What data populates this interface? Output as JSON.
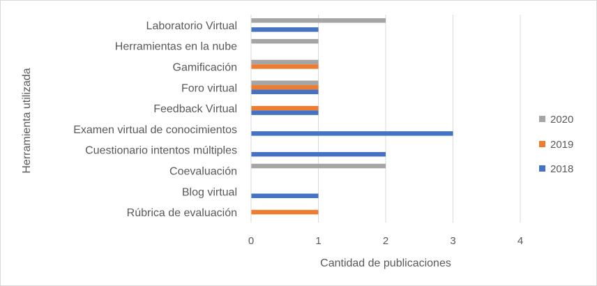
{
  "chart_data": {
    "type": "bar",
    "orientation": "horizontal",
    "title": "",
    "xlabel": "Cantidad de publicaciones",
    "ylabel": "Herramienta utilizada",
    "xlim": [
      0,
      4
    ],
    "xticks": [
      "0",
      "1",
      "2",
      "3",
      "4"
    ],
    "grid": "vertical",
    "legend_position": "right",
    "categories": [
      "Laboratorio Virtual",
      "Herramientas en la nube",
      "Gamificación",
      "Foro virtual",
      "Feedback Virtual",
      "Examen virtual de conocimientos",
      "Cuestionario intentos múltiples",
      "Coevaluación",
      "Blog virtual",
      "Rúbrica de evaluación"
    ],
    "series": [
      {
        "name": "2020",
        "color": "#a5a5a5",
        "values": [
          2,
          1,
          1,
          1,
          0,
          0,
          0,
          2,
          0,
          0
        ]
      },
      {
        "name": "2019",
        "color": "#ed7d31",
        "values": [
          0,
          0,
          1,
          1,
          1,
          0,
          0,
          0,
          0,
          1
        ]
      },
      {
        "name": "2018",
        "color": "#4472c4",
        "values": [
          1,
          0,
          0,
          1,
          1,
          3,
          2,
          0,
          1,
          0
        ]
      }
    ]
  }
}
